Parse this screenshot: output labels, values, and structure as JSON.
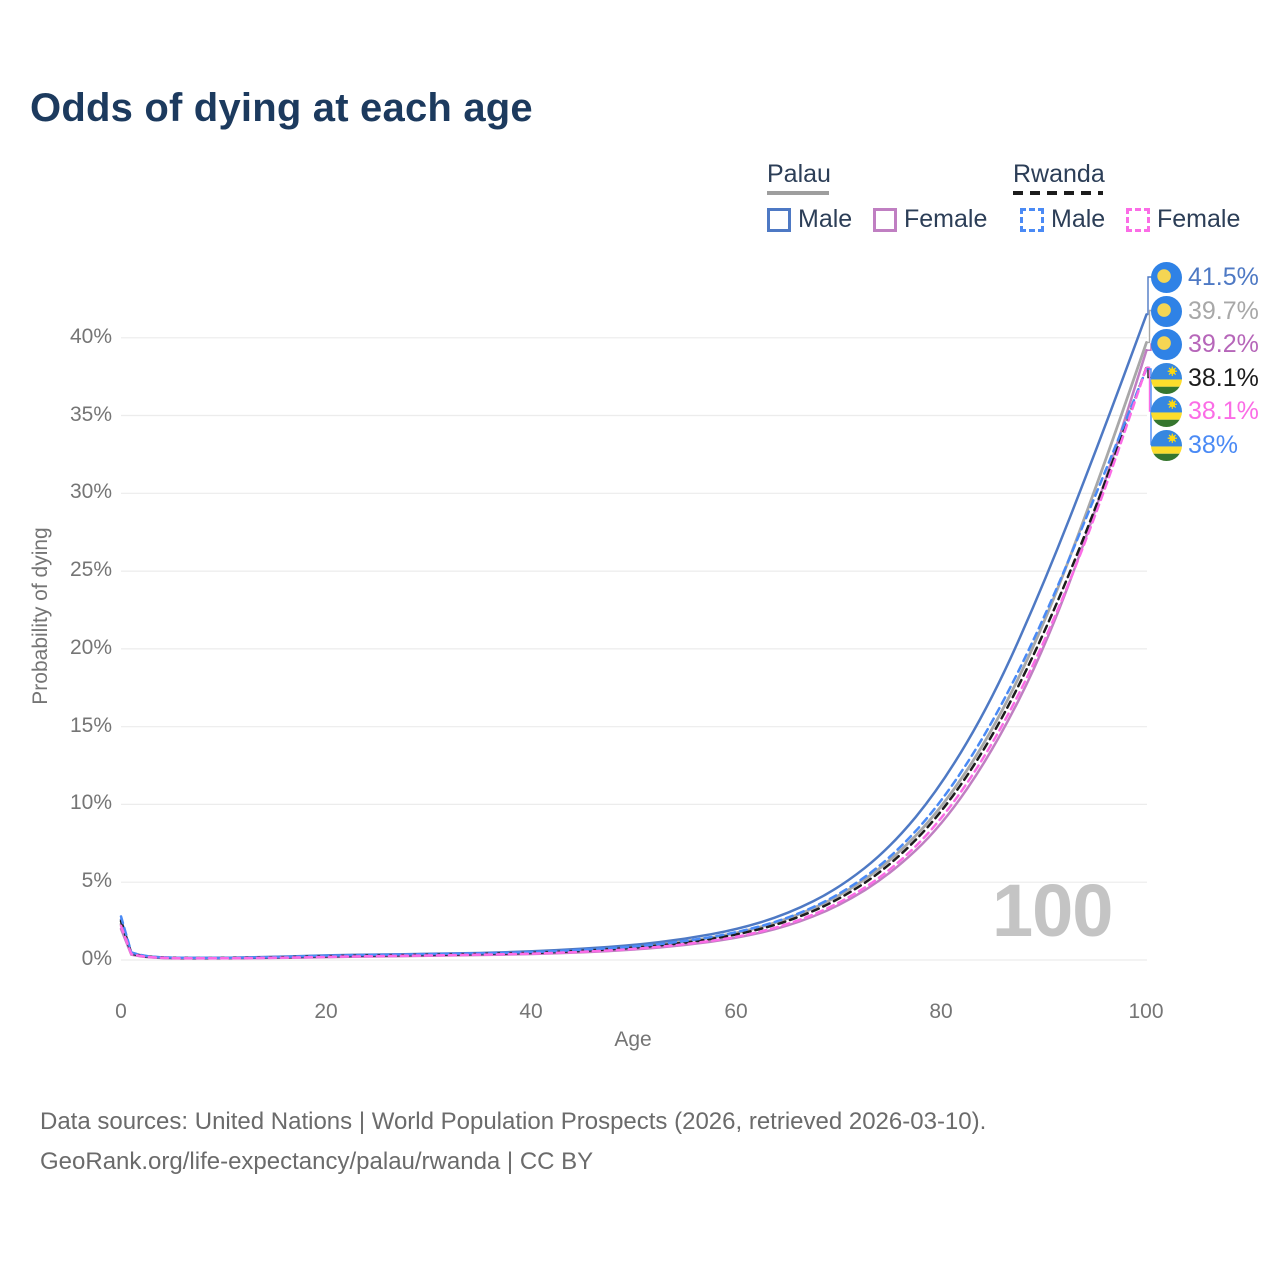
{
  "title": "Odds of dying at each age",
  "watermark": "100",
  "legend": {
    "palau": {
      "label": "Palau",
      "male": "Male",
      "female": "Female"
    },
    "rwanda": {
      "label": "Rwanda",
      "male": "Male",
      "female": "Female"
    },
    "palau_male_color": "#4e79c4",
    "palau_female_color": "#c07fc2",
    "rwanda_male_color": "#4a8af5",
    "rwanda_female_color": "#fb6ce6"
  },
  "chart_data": {
    "type": "line",
    "title": "Odds of dying at each age",
    "xlabel": "Age",
    "ylabel": "Probability of dying",
    "xlim": [
      0,
      100
    ],
    "ylim_pct": [
      0,
      43
    ],
    "grid": "horizontal",
    "legend_position": "top-right",
    "x_tick_labels": [
      "0",
      "20",
      "40",
      "60",
      "80",
      "100"
    ],
    "y_tick_labels": [
      "0%",
      "5%",
      "10%",
      "15%",
      "20%",
      "25%",
      "30%",
      "35%",
      "40%"
    ],
    "y_tick_values": [
      0,
      5,
      10,
      15,
      20,
      25,
      30,
      35,
      40
    ],
    "ages": [
      0,
      1,
      2,
      3,
      5,
      10,
      15,
      20,
      25,
      30,
      35,
      40,
      45,
      50,
      55,
      60,
      65,
      70,
      75,
      80,
      85,
      90,
      95,
      100
    ],
    "series": [
      {
        "country": "Palau",
        "name": "Both sexes",
        "style": "solid",
        "dash": false,
        "width": 2.8,
        "color": "#a8a8a8",
        "values": [
          2.3,
          0.4,
          0.25,
          0.18,
          0.12,
          0.12,
          0.17,
          0.26,
          0.31,
          0.36,
          0.41,
          0.49,
          0.63,
          0.84,
          1.18,
          1.7,
          2.6,
          4.05,
          6.3,
          9.7,
          14.7,
          21.5,
          30.2,
          39.7
        ]
      },
      {
        "country": "Palau",
        "name": "Male",
        "style": "solid",
        "dash": false,
        "width": 2.5,
        "color": "#4e79c4",
        "values": [
          2.6,
          0.45,
          0.28,
          0.2,
          0.13,
          0.13,
          0.2,
          0.3,
          0.35,
          0.4,
          0.45,
          0.55,
          0.72,
          0.95,
          1.35,
          1.95,
          2.95,
          4.6,
          7.2,
          11.2,
          16.8,
          24.2,
          32.6,
          41.5
        ]
      },
      {
        "country": "Palau",
        "name": "Female",
        "style": "solid",
        "dash": false,
        "width": 2.5,
        "color": "#c07fc2",
        "values": [
          2.0,
          0.35,
          0.22,
          0.16,
          0.1,
          0.11,
          0.13,
          0.18,
          0.23,
          0.27,
          0.32,
          0.38,
          0.49,
          0.66,
          0.95,
          1.4,
          2.15,
          3.45,
          5.5,
          8.6,
          13.4,
          19.9,
          28.7,
          39.2
        ]
      },
      {
        "country": "Rwanda",
        "name": "Both sexes",
        "style": "dashed",
        "dash": true,
        "width": 2.5,
        "color": "#1c1c1c",
        "values": [
          2.5,
          0.42,
          0.26,
          0.19,
          0.13,
          0.12,
          0.16,
          0.24,
          0.29,
          0.33,
          0.38,
          0.45,
          0.58,
          0.78,
          1.1,
          1.6,
          2.45,
          3.85,
          6.05,
          9.4,
          14.3,
          20.9,
          28.9,
          38.1
        ]
      },
      {
        "country": "Rwanda",
        "name": "Male",
        "style": "dashed",
        "dash": true,
        "width": 2.5,
        "color": "#4a8af5",
        "values": [
          2.8,
          0.48,
          0.3,
          0.21,
          0.14,
          0.13,
          0.18,
          0.28,
          0.33,
          0.38,
          0.43,
          0.5,
          0.65,
          0.85,
          1.2,
          1.75,
          2.65,
          4.15,
          6.5,
          10.1,
          15.2,
          21.9,
          29.8,
          38.0
        ]
      },
      {
        "country": "Rwanda",
        "name": "Female",
        "style": "dashed",
        "dash": true,
        "width": 2.5,
        "color": "#fb6ce6",
        "values": [
          2.2,
          0.38,
          0.24,
          0.17,
          0.11,
          0.11,
          0.14,
          0.2,
          0.25,
          0.29,
          0.34,
          0.4,
          0.52,
          0.7,
          1.0,
          1.45,
          2.25,
          3.6,
          5.7,
          8.95,
          13.8,
          20.3,
          28.4,
          38.1
        ]
      }
    ]
  },
  "end_labels": [
    {
      "text": "41.5%",
      "end_value": 41.5,
      "color": "#4e79c4",
      "flag": "palau",
      "series": "Palau Male"
    },
    {
      "text": "39.7%",
      "end_value": 39.7,
      "color": "#a8a8a8",
      "flag": "palau",
      "series": "Palau Both sexes"
    },
    {
      "text": "39.2%",
      "end_value": 39.2,
      "color": "#b666b9",
      "flag": "palau",
      "series": "Palau Female"
    },
    {
      "text": "38.1%",
      "end_value": 38.1,
      "color": "#1c1c1c",
      "flag": "rwanda",
      "series": "Rwanda Both sexes"
    },
    {
      "text": "38.1%",
      "end_value": 38.1,
      "color": "#fb6ce6",
      "flag": "rwanda",
      "series": "Rwanda Female"
    },
    {
      "text": "38%",
      "end_value": 38.0,
      "color": "#4a8af5",
      "flag": "rwanda",
      "series": "Rwanda Male"
    }
  ],
  "footer": {
    "line1": "Data sources: United Nations | World Population Prospects (2026, retrieved 2026-03-10).",
    "line2": "GeoRank.org/life-expectancy/palau/rwanda | CC BY"
  }
}
